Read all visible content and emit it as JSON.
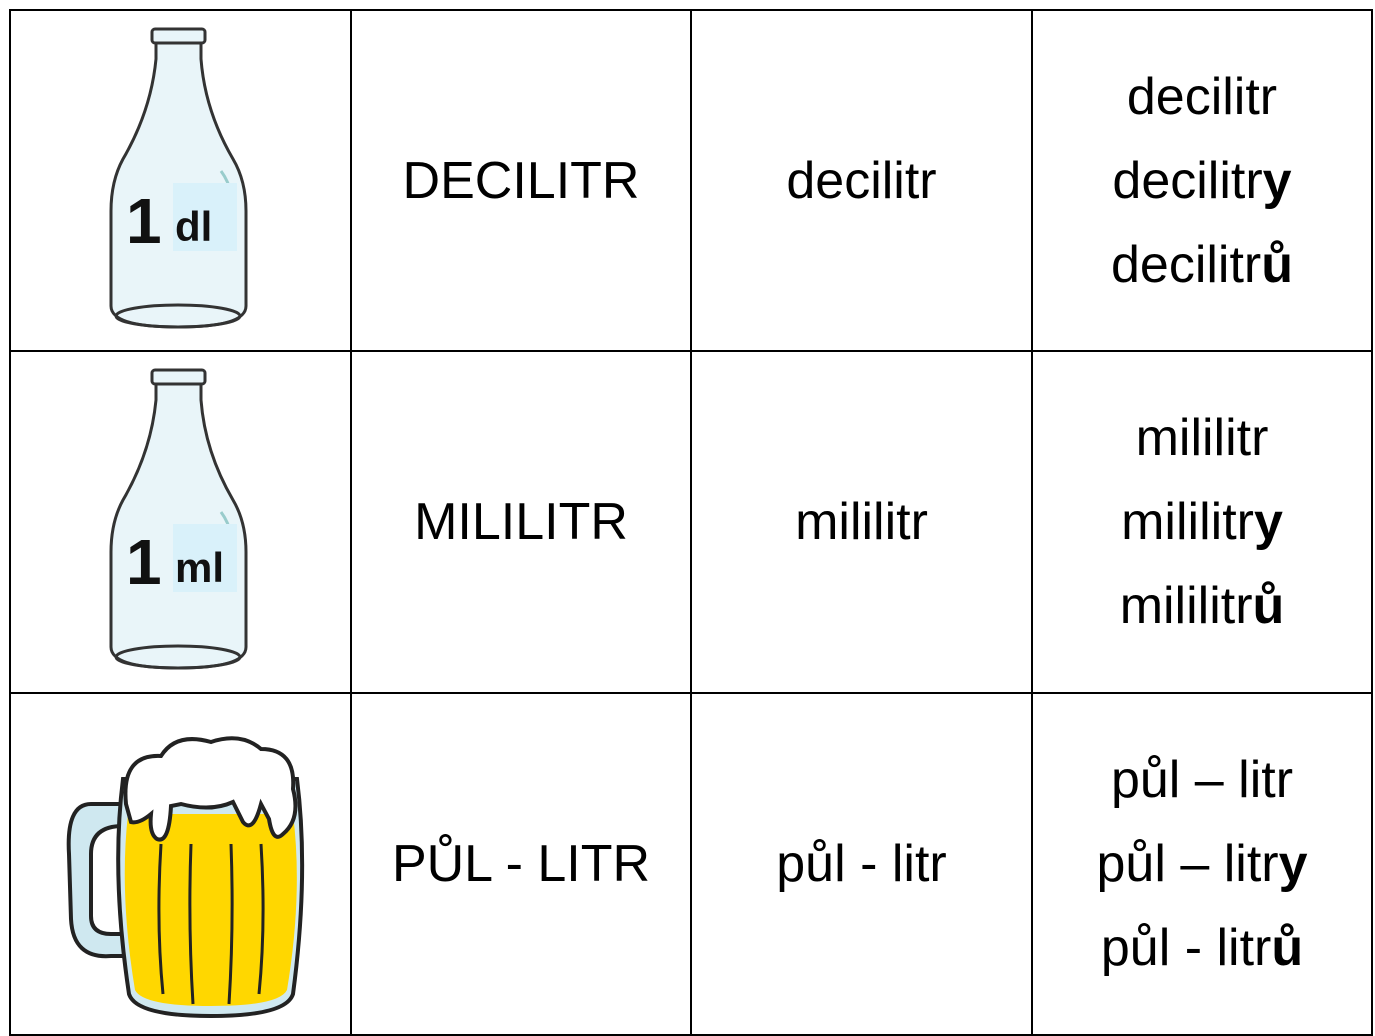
{
  "table": {
    "rows": [
      {
        "icon": {
          "number": "1",
          "unit": "dl"
        },
        "upper": "DECILITR",
        "lower": "decilitr",
        "forms": [
          {
            "stem": "decilitr"
          },
          {
            "stem": "decilitr",
            "ending": "y"
          },
          {
            "stem": "decilitr",
            "ending": "ů"
          }
        ]
      },
      {
        "icon": {
          "number": "1",
          "unit": "ml"
        },
        "upper": "MILILITR",
        "lower": "mililitr",
        "forms": [
          {
            "stem": "mililitr"
          },
          {
            "stem": "mililitr",
            "ending": "y"
          },
          {
            "stem": "mililitr",
            "ending": "ů"
          }
        ]
      },
      {
        "upper": "PŮL - LITR",
        "lower": "půl - litr",
        "forms": [
          {
            "stem": "půl – litr"
          },
          {
            "stem": "půl – litr",
            "ending": "y"
          },
          {
            "stem": "půl - litr",
            "ending": "ů"
          }
        ]
      }
    ]
  }
}
